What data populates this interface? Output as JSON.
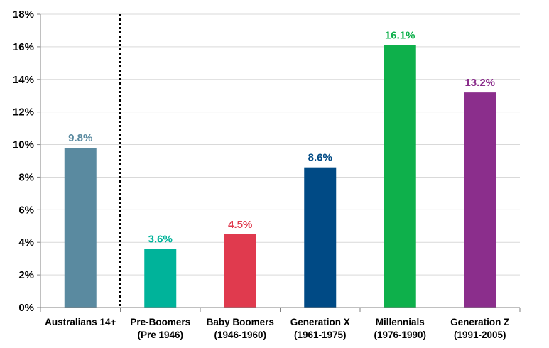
{
  "chart_data": {
    "type": "bar",
    "categories": [
      [
        "Australians 14+"
      ],
      [
        "Pre-Boomers",
        "(Pre 1946)"
      ],
      [
        "Baby Boomers",
        "(1946-1960)"
      ],
      [
        "Generation X",
        "(1961-1975)"
      ],
      [
        "Millennials",
        "(1976-1990)"
      ],
      [
        "Generation Z",
        "(1991-2005)"
      ]
    ],
    "values": [
      9.8,
      3.6,
      4.5,
      8.6,
      16.1,
      13.2
    ],
    "data_labels": [
      "9.8%",
      "3.6%",
      "4.5%",
      "8.6%",
      "16.1%",
      "13.2%"
    ],
    "colors": [
      "#5a8aa0",
      "#00b39a",
      "#e03a4e",
      "#004a85",
      "#0eb04b",
      "#8b2e8c"
    ],
    "ylim": [
      0,
      18
    ],
    "yticks": [
      0,
      2,
      4,
      6,
      8,
      10,
      12,
      14,
      16,
      18
    ],
    "ytick_labels": [
      "0%",
      "2%",
      "4%",
      "6%",
      "8%",
      "10%",
      "12%",
      "14%",
      "16%",
      "18%"
    ],
    "grid": true,
    "separator_after_category": 0,
    "title": "",
    "xlabel": "",
    "ylabel": ""
  }
}
